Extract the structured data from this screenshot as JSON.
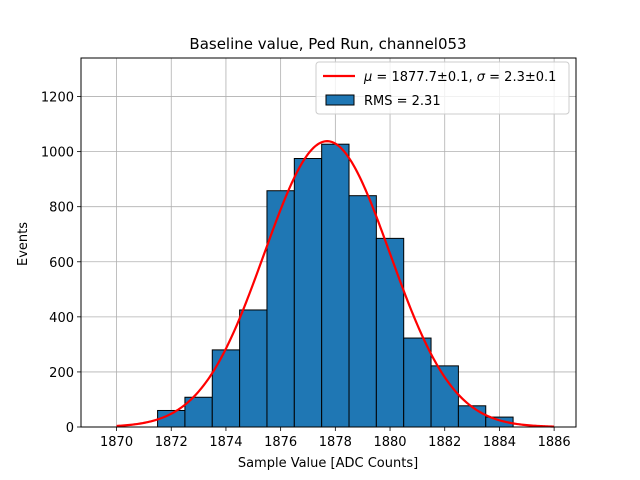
{
  "chart_data": {
    "type": "bar",
    "title": "Baseline value, Ped Run, channel053",
    "xlabel": "Sample Value [ADC Counts]",
    "ylabel": "Events",
    "xlim": [
      1868.7,
      1886.8
    ],
    "ylim": [
      0,
      1340
    ],
    "xticks": [
      "1870",
      "1872",
      "1874",
      "1876",
      "1878",
      "1880",
      "1882",
      "1884",
      "1886"
    ],
    "xtick_values": [
      1870,
      1872,
      1874,
      1876,
      1878,
      1880,
      1882,
      1884,
      1886
    ],
    "yticks": [
      "0",
      "200",
      "400",
      "600",
      "800",
      "1000",
      "1200"
    ],
    "ytick_values": [
      0,
      200,
      400,
      600,
      800,
      1000,
      1200
    ],
    "grid": true,
    "legend_position": "top-right",
    "histogram": {
      "label": "RMS = 2.31",
      "color": "#1f77b4",
      "edge_color": "#000000",
      "bins": [
        {
          "x0": 1871.5,
          "x1": 1872.5,
          "value": 60
        },
        {
          "x0": 1872.5,
          "x1": 1873.5,
          "value": 108
        },
        {
          "x0": 1873.5,
          "x1": 1874.5,
          "value": 280
        },
        {
          "x0": 1874.5,
          "x1": 1875.5,
          "value": 425
        },
        {
          "x0": 1875.5,
          "x1": 1876.5,
          "value": 858
        },
        {
          "x0": 1876.5,
          "x1": 1877.5,
          "value": 975
        },
        {
          "x0": 1877.5,
          "x1": 1878.5,
          "value": 1027
        },
        {
          "x0": 1878.5,
          "x1": 1879.5,
          "value": 840
        },
        {
          "x0": 1879.5,
          "x1": 1880.5,
          "value": 685
        },
        {
          "x0": 1880.5,
          "x1": 1881.5,
          "value": 323
        },
        {
          "x0": 1881.5,
          "x1": 1882.5,
          "value": 222
        },
        {
          "x0": 1882.5,
          "x1": 1883.5,
          "value": 77
        },
        {
          "x0": 1883.5,
          "x1": 1884.5,
          "value": 36
        }
      ]
    },
    "fit": {
      "label": "μ = 1877.7±0.1, σ = 2.3±0.1",
      "label_parts": {
        "mu_symbol": "μ",
        "mu_text": " = 1877.7±0.1, ",
        "sigma_symbol": "σ",
        "sigma_text": " = 2.3±0.1"
      },
      "color": "#ff0000",
      "mu": 1877.7,
      "sigma": 2.3,
      "amplitude": 1038,
      "x_range": [
        1870,
        1886
      ]
    }
  }
}
